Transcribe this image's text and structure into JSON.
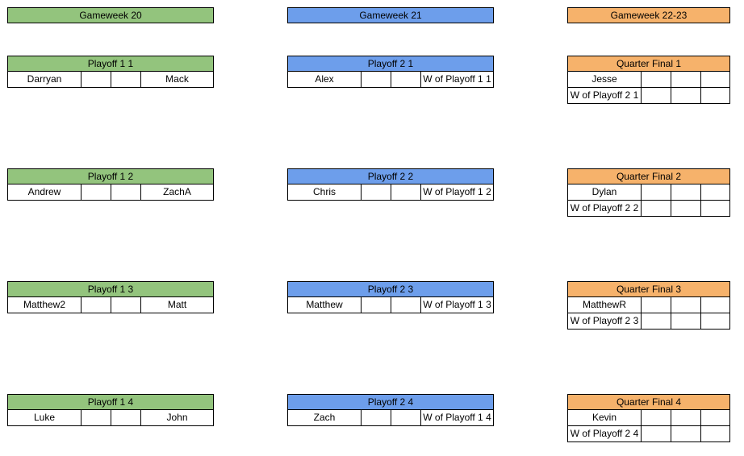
{
  "colors": {
    "green": "#93c47d",
    "blue": "#6d9eeb",
    "orange": "#f6b26b"
  },
  "columns": [
    {
      "gameweek": "Gameweek 20",
      "color": "green",
      "matches": [
        {
          "title": "Playoff 1 1",
          "rows": [
            [
              "Darryan",
              "",
              "",
              "Mack"
            ]
          ]
        },
        {
          "title": "Playoff 1 2",
          "rows": [
            [
              "Andrew",
              "",
              "",
              "ZachA"
            ]
          ]
        },
        {
          "title": "Playoff 1 3",
          "rows": [
            [
              "Matthew2",
              "",
              "",
              "Matt"
            ]
          ]
        },
        {
          "title": "Playoff 1 4",
          "rows": [
            [
              "Luke",
              "",
              "",
              "John"
            ]
          ]
        }
      ]
    },
    {
      "gameweek": "Gameweek 21",
      "color": "blue",
      "matches": [
        {
          "title": "Playoff 2 1",
          "rows": [
            [
              "Alex",
              "",
              "",
              "W of Playoff 1 1"
            ]
          ]
        },
        {
          "title": "Playoff 2 2",
          "rows": [
            [
              "Chris",
              "",
              "",
              "W of Playoff 1 2"
            ]
          ]
        },
        {
          "title": "Playoff 2 3",
          "rows": [
            [
              "Matthew",
              "",
              "",
              "W of Playoff 1 3"
            ]
          ]
        },
        {
          "title": "Playoff 2 4",
          "rows": [
            [
              "Zach",
              "",
              "",
              "W of Playoff 1 4"
            ]
          ]
        }
      ]
    },
    {
      "gameweek": "Gameweek 22-23",
      "color": "orange",
      "matches": [
        {
          "title": "Quarter Final 1",
          "rows": [
            [
              "Jesse",
              "",
              "",
              ""
            ],
            [
              "W of Playoff 2 1",
              "",
              "",
              ""
            ]
          ]
        },
        {
          "title": "Quarter Final 2",
          "rows": [
            [
              "Dylan",
              "",
              "",
              ""
            ],
            [
              "W of Playoff 2 2",
              "",
              "",
              ""
            ]
          ]
        },
        {
          "title": "Quarter Final 3",
          "rows": [
            [
              "MatthewR",
              "",
              "",
              ""
            ],
            [
              "W of Playoff 2 3",
              "",
              "",
              ""
            ]
          ]
        },
        {
          "title": "Quarter Final 4",
          "rows": [
            [
              "Kevin",
              "",
              "",
              ""
            ],
            [
              "W of Playoff 2 4",
              "",
              "",
              ""
            ]
          ]
        }
      ]
    }
  ]
}
